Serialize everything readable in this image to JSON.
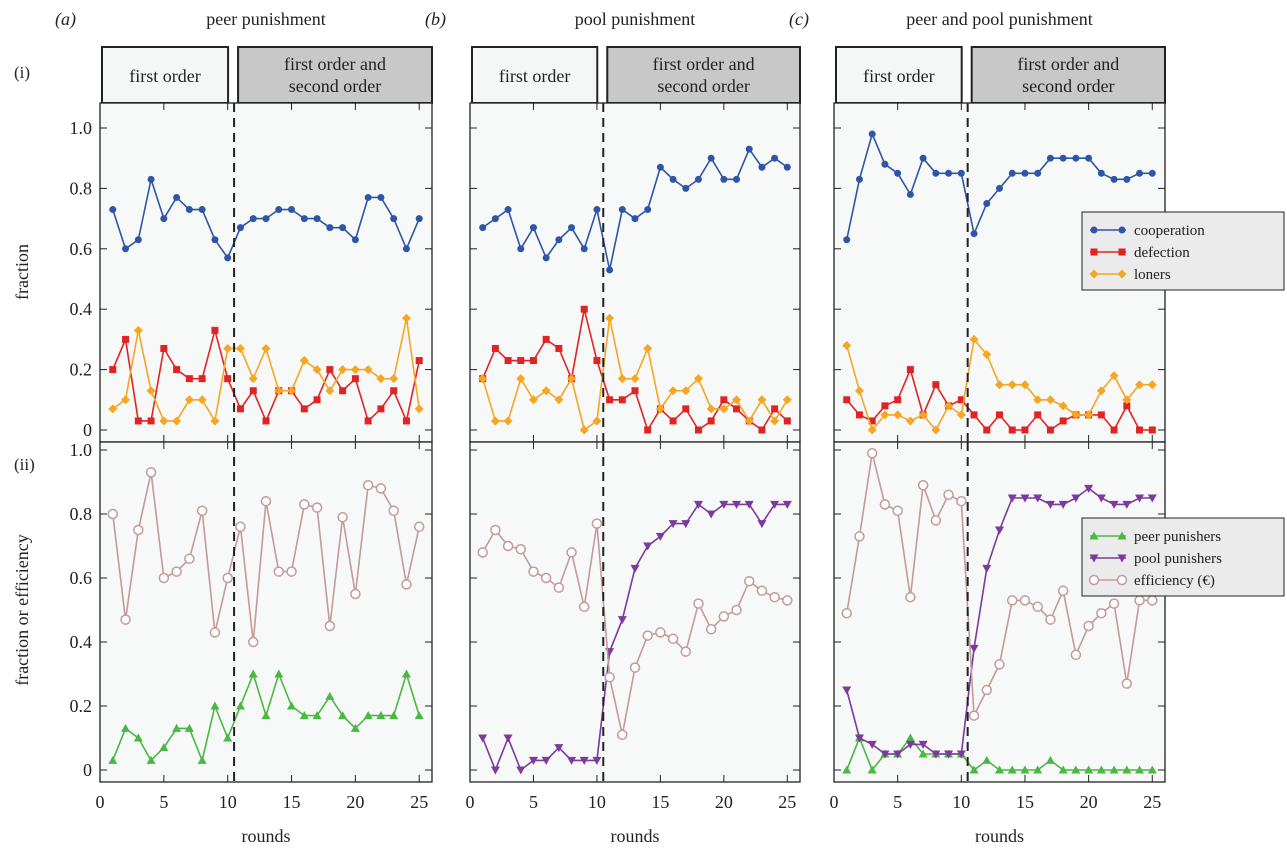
{
  "row_labels": [
    "(i)",
    "(ii)"
  ],
  "y_axis_titles": [
    "fraction",
    "fraction or efficiency"
  ],
  "x_axis_title": "rounds",
  "x_ticks": [
    "0",
    "5",
    "10",
    "15",
    "20",
    "25"
  ],
  "y_ticks": [
    "0",
    "0.2",
    "0.4",
    "0.6",
    "0.8",
    "1.0"
  ],
  "phase_labels": {
    "first": [
      "first order"
    ],
    "second": [
      "first order and",
      "second order"
    ]
  },
  "colors": {
    "cooperation": "#2f56a6",
    "defection": "#e02424",
    "loners": "#f5a623",
    "peer_punishers": "#4ab843",
    "pool_punishers": "#7b3a9c",
    "efficiency": "#c49a9a"
  },
  "legends": {
    "top": [
      "cooperation",
      "defection",
      "loners"
    ],
    "bottom": [
      "peer punishers",
      "pool punishers",
      "efficiency (€)"
    ]
  },
  "chart_data": [
    {
      "type": "line",
      "tag": "(a)",
      "title": "peer punishment",
      "phase_switch_round": 10.5,
      "xlim": [
        0,
        26
      ],
      "top": {
        "ylim": [
          0,
          1
        ],
        "series": [
          {
            "name": "cooperation",
            "values": [
              0.73,
              0.6,
              0.63,
              0.83,
              0.7,
              0.77,
              0.73,
              0.73,
              0.63,
              0.57,
              0.67,
              0.7,
              0.7,
              0.73,
              0.73,
              0.7,
              0.7,
              0.67,
              0.67,
              0.63,
              0.77,
              0.77,
              0.7,
              0.6,
              0.7
            ]
          },
          {
            "name": "defection",
            "values": [
              0.2,
              0.3,
              0.03,
              0.03,
              0.27,
              0.2,
              0.17,
              0.17,
              0.33,
              0.17,
              0.07,
              0.13,
              0.03,
              0.13,
              0.13,
              0.07,
              0.1,
              0.2,
              0.13,
              0.17,
              0.03,
              0.07,
              0.13,
              0.03,
              0.23
            ]
          },
          {
            "name": "loners",
            "values": [
              0.07,
              0.1,
              0.33,
              0.13,
              0.03,
              0.03,
              0.1,
              0.1,
              0.03,
              0.27,
              0.27,
              0.17,
              0.27,
              0.13,
              0.13,
              0.23,
              0.2,
              0.13,
              0.2,
              0.2,
              0.2,
              0.17,
              0.17,
              0.37,
              0.07
            ]
          }
        ]
      },
      "bottom": {
        "ylim": [
          0,
          1
        ],
        "series": [
          {
            "name": "peer punishers",
            "values": [
              0.03,
              0.13,
              0.1,
              0.03,
              0.07,
              0.13,
              0.13,
              0.03,
              0.2,
              0.1,
              0.2,
              0.3,
              0.17,
              0.3,
              0.2,
              0.17,
              0.17,
              0.23,
              0.17,
              0.13,
              0.17,
              0.17,
              0.17,
              0.3,
              0.17
            ]
          },
          {
            "name": "efficiency (€)",
            "values": [
              0.8,
              0.47,
              0.75,
              0.93,
              0.6,
              0.62,
              0.66,
              0.81,
              0.43,
              0.6,
              0.76,
              0.4,
              0.84,
              0.62,
              0.62,
              0.83,
              0.82,
              0.45,
              0.79,
              0.55,
              0.89,
              0.88,
              0.81,
              0.58,
              0.76
            ]
          }
        ]
      }
    },
    {
      "type": "line",
      "tag": "(b)",
      "title": "pool punishment",
      "phase_switch_round": 10.5,
      "xlim": [
        0,
        26
      ],
      "top": {
        "ylim": [
          0,
          1
        ],
        "series": [
          {
            "name": "cooperation",
            "values": [
              0.67,
              0.7,
              0.73,
              0.6,
              0.67,
              0.57,
              0.63,
              0.67,
              0.6,
              0.73,
              0.53,
              0.73,
              0.7,
              0.73,
              0.87,
              0.83,
              0.8,
              0.83,
              0.9,
              0.83,
              0.83,
              0.93,
              0.87,
              0.9,
              0.87
            ]
          },
          {
            "name": "defection",
            "values": [
              0.17,
              0.27,
              0.23,
              0.23,
              0.23,
              0.3,
              0.27,
              0.17,
              0.4,
              0.23,
              0.1,
              0.1,
              0.13,
              0.0,
              0.07,
              0.03,
              0.07,
              0.0,
              0.03,
              0.1,
              0.07,
              0.03,
              0.0,
              0.07,
              0.03
            ]
          },
          {
            "name": "loners",
            "values": [
              0.17,
              0.03,
              0.03,
              0.17,
              0.1,
              0.13,
              0.1,
              0.17,
              0.0,
              0.03,
              0.37,
              0.17,
              0.17,
              0.27,
              0.07,
              0.13,
              0.13,
              0.17,
              0.07,
              0.07,
              0.1,
              0.03,
              0.1,
              0.03,
              0.1
            ]
          }
        ]
      },
      "bottom": {
        "ylim": [
          0,
          1
        ],
        "series": [
          {
            "name": "pool punishers",
            "values": [
              0.1,
              0.0,
              0.1,
              0.0,
              0.03,
              0.03,
              0.07,
              0.03,
              0.03,
              0.03,
              0.37,
              0.47,
              0.63,
              0.7,
              0.73,
              0.77,
              0.77,
              0.83,
              0.8,
              0.83,
              0.83,
              0.83,
              0.77,
              0.83,
              0.83
            ]
          },
          {
            "name": "efficiency (€)",
            "values": [
              0.68,
              0.75,
              0.7,
              0.69,
              0.62,
              0.6,
              0.57,
              0.68,
              0.51,
              0.77,
              0.29,
              0.11,
              0.32,
              0.42,
              0.43,
              0.41,
              0.37,
              0.52,
              0.44,
              0.48,
              0.5,
              0.59,
              0.56,
              0.54,
              0.53
            ]
          }
        ]
      }
    },
    {
      "type": "line",
      "tag": "(c)",
      "title": "peer and pool punishment",
      "phase_switch_round": 10.5,
      "xlim": [
        0,
        26
      ],
      "top": {
        "ylim": [
          0,
          1
        ],
        "series": [
          {
            "name": "cooperation",
            "values": [
              0.63,
              0.83,
              0.98,
              0.88,
              0.85,
              0.78,
              0.9,
              0.85,
              0.85,
              0.85,
              0.65,
              0.75,
              0.8,
              0.85,
              0.85,
              0.85,
              0.9,
              0.9,
              0.9,
              0.9,
              0.85,
              0.83,
              0.83,
              0.85,
              0.85
            ]
          },
          {
            "name": "defection",
            "values": [
              0.1,
              0.05,
              0.03,
              0.08,
              0.1,
              0.2,
              0.05,
              0.15,
              0.08,
              0.1,
              0.05,
              0.0,
              0.05,
              0.0,
              0.0,
              0.05,
              0.0,
              0.03,
              0.05,
              0.05,
              0.05,
              0.0,
              0.08,
              0.0,
              0.0
            ]
          },
          {
            "name": "loners",
            "values": [
              0.28,
              0.13,
              0.0,
              0.05,
              0.05,
              0.03,
              0.05,
              0.0,
              0.08,
              0.05,
              0.3,
              0.25,
              0.15,
              0.15,
              0.15,
              0.1,
              0.1,
              0.08,
              0.05,
              0.05,
              0.13,
              0.18,
              0.1,
              0.15,
              0.15
            ]
          }
        ]
      },
      "bottom": {
        "ylim": [
          0,
          1
        ],
        "series": [
          {
            "name": "peer punishers",
            "values": [
              0.0,
              0.1,
              0.0,
              0.05,
              0.05,
              0.1,
              0.05,
              0.05,
              0.05,
              0.05,
              0.0,
              0.03,
              0.0,
              0.0,
              0.0,
              0.0,
              0.03,
              0.0,
              0.0,
              0.0,
              0.0,
              0.0,
              0.0,
              0.0,
              0.0
            ]
          },
          {
            "name": "pool punishers",
            "values": [
              0.25,
              0.1,
              0.08,
              0.05,
              0.05,
              0.08,
              0.08,
              0.05,
              0.05,
              0.05,
              0.38,
              0.63,
              0.75,
              0.85,
              0.85,
              0.85,
              0.83,
              0.83,
              0.85,
              0.88,
              0.85,
              0.83,
              0.83,
              0.85,
              0.85
            ]
          },
          {
            "name": "efficiency (€)",
            "values": [
              0.49,
              0.73,
              0.99,
              0.83,
              0.81,
              0.54,
              0.89,
              0.78,
              0.86,
              0.84,
              0.17,
              0.25,
              0.33,
              0.53,
              0.53,
              0.51,
              0.47,
              0.56,
              0.36,
              0.45,
              0.49,
              0.52,
              0.27,
              0.53,
              0.53
            ]
          }
        ]
      }
    }
  ]
}
